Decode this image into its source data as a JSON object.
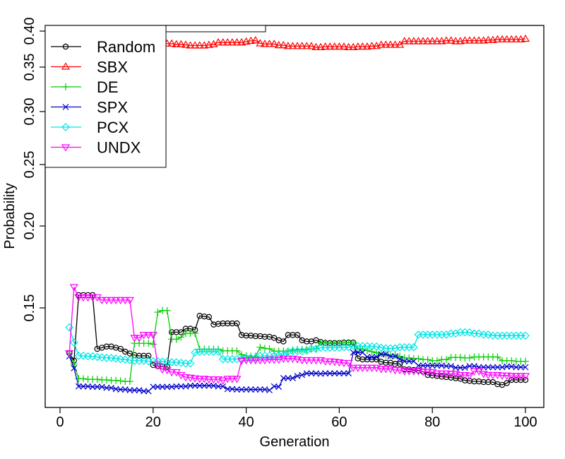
{
  "chart_data": {
    "type": "line",
    "title": "",
    "xlabel": "Generation",
    "ylabel": "Probability",
    "xlim": [
      -2,
      103
    ],
    "ylim": [
      0.1,
      0.4
    ],
    "x_ticks": [
      0,
      20,
      40,
      60,
      80,
      100
    ],
    "y_ticks": [
      0.15,
      0.2,
      0.25,
      0.3,
      0.35,
      0.4
    ],
    "y_scale": "piecewise",
    "y_scale_points": [
      [
        0.1,
        0.1
      ],
      [
        0.15,
        0.15
      ],
      [
        0.2,
        0.2
      ],
      [
        0.25,
        0.25
      ],
      [
        0.3,
        0.3
      ],
      [
        0.35,
        0.36
      ],
      [
        0.4,
        0.4
      ]
    ],
    "grid": false,
    "legend_position": "top-left",
    "x": [
      2,
      3,
      4,
      5,
      6,
      7,
      8,
      9,
      10,
      11,
      12,
      13,
      14,
      15,
      16,
      17,
      18,
      19,
      20,
      21,
      22,
      23,
      24,
      25,
      26,
      27,
      28,
      29,
      30,
      31,
      32,
      33,
      34,
      35,
      36,
      37,
      38,
      39,
      40,
      41,
      42,
      43,
      44,
      45,
      46,
      47,
      48,
      49,
      50,
      51,
      52,
      53,
      54,
      55,
      56,
      57,
      58,
      59,
      60,
      61,
      62,
      63,
      64,
      65,
      66,
      67,
      68,
      69,
      70,
      71,
      72,
      73,
      74,
      75,
      76,
      77,
      78,
      79,
      80,
      81,
      82,
      83,
      84,
      85,
      86,
      87,
      88,
      89,
      90,
      91,
      92,
      93,
      94,
      95,
      96,
      97,
      98,
      99,
      100
    ],
    "series": [
      {
        "name": "Random",
        "color": "#000000",
        "marker": "circle",
        "values": [
          0.1226,
          0.1181,
          0.1578,
          0.1578,
          0.1578,
          0.1578,
          0.1252,
          0.1259,
          0.1266,
          0.1266,
          0.1259,
          0.1252,
          0.1235,
          0.1224,
          0.1214,
          0.121,
          0.121,
          0.121,
          0.1154,
          0.1148,
          0.1145,
          0.1145,
          0.1353,
          0.1353,
          0.1353,
          0.1374,
          0.1374,
          0.1367,
          0.1452,
          0.1448,
          0.1445,
          0.1399,
          0.1403,
          0.1406,
          0.1406,
          0.1406,
          0.1406,
          0.1336,
          0.1332,
          0.1332,
          0.1329,
          0.1329,
          0.1325,
          0.1325,
          0.1318,
          0.1304,
          0.1297,
          0.1336,
          0.1336,
          0.1336,
          0.1304,
          0.1297,
          0.1297,
          0.1304,
          0.1294,
          0.1287,
          0.1287,
          0.1287,
          0.1287,
          0.129,
          0.129,
          0.129,
          0.1194,
          0.1188,
          0.1188,
          0.1188,
          0.1188,
          0.1174,
          0.1168,
          0.1168,
          0.1161,
          0.1161,
          0.1128,
          0.1128,
          0.1124,
          0.1121,
          0.1114,
          0.1094,
          0.1091,
          0.1088,
          0.1084,
          0.1081,
          0.1078,
          0.1074,
          0.1071,
          0.1061,
          0.1058,
          0.1055,
          0.1055,
          0.1051,
          0.1051,
          0.1051,
          0.1038,
          0.1034,
          0.1045,
          0.1064,
          0.1064,
          0.1064,
          0.1064
        ]
      },
      {
        "name": "SBX",
        "color": "#ff0000",
        "marker": "triangle-up",
        "values": [
          0.3825,
          0.3825,
          0.3825,
          0.3825,
          0.3825,
          0.3825,
          0.3825,
          0.3825,
          0.3825,
          0.3825,
          0.3825,
          0.3825,
          0.3825,
          0.3825,
          0.3825,
          0.3825,
          0.3825,
          0.3825,
          0.3825,
          0.3825,
          0.3825,
          0.3825,
          0.3825,
          0.3816,
          0.3816,
          0.3808,
          0.3799,
          0.3799,
          0.3799,
          0.3799,
          0.3807,
          0.3816,
          0.3841,
          0.3841,
          0.3841,
          0.3841,
          0.3841,
          0.3841,
          0.3853,
          0.3864,
          0.387,
          0.3828,
          0.382,
          0.382,
          0.382,
          0.3803,
          0.3803,
          0.3791,
          0.379,
          0.379,
          0.379,
          0.379,
          0.379,
          0.3775,
          0.3775,
          0.3783,
          0.3783,
          0.3783,
          0.3783,
          0.3783,
          0.3775,
          0.3775,
          0.3783,
          0.3783,
          0.3783,
          0.3791,
          0.3791,
          0.3808,
          0.3808,
          0.3808,
          0.3808,
          0.3808,
          0.3858,
          0.3858,
          0.3858,
          0.3858,
          0.3858,
          0.3858,
          0.3858,
          0.3858,
          0.3858,
          0.3867,
          0.3867,
          0.3858,
          0.3858,
          0.3867,
          0.3867,
          0.3867,
          0.3867,
          0.3867,
          0.3875,
          0.3875,
          0.3883,
          0.3883,
          0.3883,
          0.3883,
          0.3883,
          0.3883,
          0.3892
        ]
      },
      {
        "name": "DE",
        "color": "#00cc00",
        "marker": "plus",
        "values": [
          0.1226,
          0.116,
          0.1071,
          0.1071,
          0.1068,
          0.1068,
          0.1068,
          0.1064,
          0.1064,
          0.1061,
          0.1061,
          0.1058,
          0.1055,
          0.1055,
          0.1286,
          0.1286,
          0.1286,
          0.1286,
          0.128,
          0.1474,
          0.1484,
          0.1484,
          0.131,
          0.131,
          0.1323,
          0.1346,
          0.1346,
          0.1346,
          0.125,
          0.125,
          0.125,
          0.125,
          0.125,
          0.124,
          0.124,
          0.124,
          0.124,
          0.1217,
          0.121,
          0.1207,
          0.1207,
          0.1262,
          0.1255,
          0.1252,
          0.1238,
          0.1238,
          0.1238,
          0.1238,
          0.1245,
          0.1248,
          0.1248,
          0.1248,
          0.1252,
          0.1252,
          0.129,
          0.129,
          0.1285,
          0.1285,
          0.1285,
          0.129,
          0.129,
          0.129,
          0.1252,
          0.1248,
          0.1242,
          0.1235,
          0.1228,
          0.1221,
          0.1214,
          0.1214,
          0.1214,
          0.1207,
          0.1197,
          0.1197,
          0.1193,
          0.1193,
          0.1187,
          0.1187,
          0.118,
          0.118,
          0.1187,
          0.1187,
          0.12,
          0.12,
          0.12,
          0.1197,
          0.1197,
          0.1203,
          0.1203,
          0.1203,
          0.1203,
          0.1203,
          0.1203,
          0.118,
          0.118,
          0.118,
          0.1177,
          0.1177,
          0.1177
        ]
      },
      {
        "name": "SPX",
        "color": "#0000cc",
        "marker": "x",
        "values": [
          0.1207,
          0.1135,
          0.1025,
          0.1025,
          0.1025,
          0.1022,
          0.1022,
          0.1022,
          0.1016,
          0.1016,
          0.1009,
          0.1006,
          0.1006,
          0.1002,
          0.1002,
          0.1002,
          0.0996,
          0.0996,
          0.1022,
          0.1022,
          0.1022,
          0.1022,
          0.1022,
          0.1025,
          0.1025,
          0.1025,
          0.1029,
          0.1029,
          0.1029,
          0.1029,
          0.1029,
          0.1029,
          0.1025,
          0.1025,
          0.1009,
          0.1009,
          0.1006,
          0.1006,
          0.1006,
          0.1006,
          0.1006,
          0.1006,
          0.1006,
          0.1002,
          0.1025,
          0.1022,
          0.1075,
          0.1075,
          0.1075,
          0.1088,
          0.1094,
          0.1104,
          0.1104,
          0.1104,
          0.1101,
          0.1104,
          0.1104,
          0.1104,
          0.1104,
          0.1104,
          0.1104,
          0.123,
          0.123,
          0.123,
          0.1203,
          0.1203,
          0.1203,
          0.122,
          0.122,
          0.1207,
          0.1207,
          0.119,
          0.1177,
          0.1177,
          0.1177,
          0.1151,
          0.1151,
          0.1151,
          0.1151,
          0.1151,
          0.1151,
          0.1148,
          0.1148,
          0.1138,
          0.1138,
          0.1138,
          0.1148,
          0.1148,
          0.1141,
          0.1141,
          0.1141,
          0.1141,
          0.1141,
          0.1141,
          0.1145,
          0.1145,
          0.1141,
          0.1141,
          0.1141
        ]
      },
      {
        "name": "PCX",
        "color": "#00e5e5",
        "marker": "diamond",
        "values": [
          0.1382,
          0.129,
          0.121,
          0.121,
          0.1207,
          0.1207,
          0.1203,
          0.12,
          0.1197,
          0.1197,
          0.1193,
          0.119,
          0.1187,
          0.1184,
          0.118,
          0.118,
          0.118,
          0.1177,
          0.1177,
          0.1177,
          0.1174,
          0.1174,
          0.1171,
          0.1171,
          0.1167,
          0.1164,
          0.1164,
          0.123,
          0.1235,
          0.1235,
          0.1235,
          0.1235,
          0.1235,
          0.119,
          0.119,
          0.119,
          0.119,
          0.119,
          0.1197,
          0.1197,
          0.1197,
          0.121,
          0.121,
          0.121,
          0.121,
          0.1214,
          0.1214,
          0.1235,
          0.1238,
          0.1238,
          0.1238,
          0.1242,
          0.1252,
          0.1252,
          0.1259,
          0.1259,
          0.1259,
          0.1259,
          0.1259,
          0.1262,
          0.1262,
          0.1269,
          0.1269,
          0.1269,
          0.1269,
          0.1266,
          0.1266,
          0.1259,
          0.1255,
          0.1255,
          0.1255,
          0.1262,
          0.1262,
          0.1262,
          0.1262,
          0.1338,
          0.1338,
          0.1338,
          0.1338,
          0.1338,
          0.1338,
          0.1338,
          0.1345,
          0.1345,
          0.1352,
          0.1352,
          0.1352,
          0.1345,
          0.1345,
          0.1338,
          0.1338,
          0.1332,
          0.1332,
          0.1332,
          0.1332,
          0.1332,
          0.1332,
          0.1332,
          0.1332
        ]
      },
      {
        "name": "UNDX",
        "color": "#ff00ff",
        "marker": "triangle-down",
        "values": [
          0.1226,
          0.1627,
          0.1565,
          0.1565,
          0.1565,
          0.1565,
          0.1565,
          0.1548,
          0.1548,
          0.1548,
          0.1548,
          0.1548,
          0.1548,
          0.1548,
          0.1319,
          0.1319,
          0.1337,
          0.1337,
          0.1337,
          0.1151,
          0.1128,
          0.1124,
          0.1111,
          0.1111,
          0.1094,
          0.1081,
          0.1078,
          0.1074,
          0.1071,
          0.1071,
          0.1068,
          0.1068,
          0.1068,
          0.1061,
          0.1071,
          0.1071,
          0.1071,
          0.118,
          0.1184,
          0.1184,
          0.1184,
          0.1184,
          0.1184,
          0.1187,
          0.1187,
          0.1187,
          0.1193,
          0.1193,
          0.1193,
          0.119,
          0.1184,
          0.1184,
          0.1184,
          0.1184,
          0.1184,
          0.1177,
          0.1177,
          0.1174,
          0.1171,
          0.1167,
          0.1167,
          0.1138,
          0.1138,
          0.1138,
          0.1138,
          0.1138,
          0.1138,
          0.1131,
          0.1131,
          0.1131,
          0.1124,
          0.1124,
          0.1118,
          0.1118,
          0.1118,
          0.1118,
          0.1114,
          0.1114,
          0.1111,
          0.1104,
          0.1104,
          0.1104,
          0.1101,
          0.1101,
          0.1094,
          0.1094,
          0.1091,
          0.1117,
          0.1117,
          0.1101,
          0.1094,
          0.1094,
          0.1094,
          0.1091,
          0.1091,
          0.1088,
          0.1088,
          0.1088,
          0.1088
        ]
      }
    ]
  }
}
